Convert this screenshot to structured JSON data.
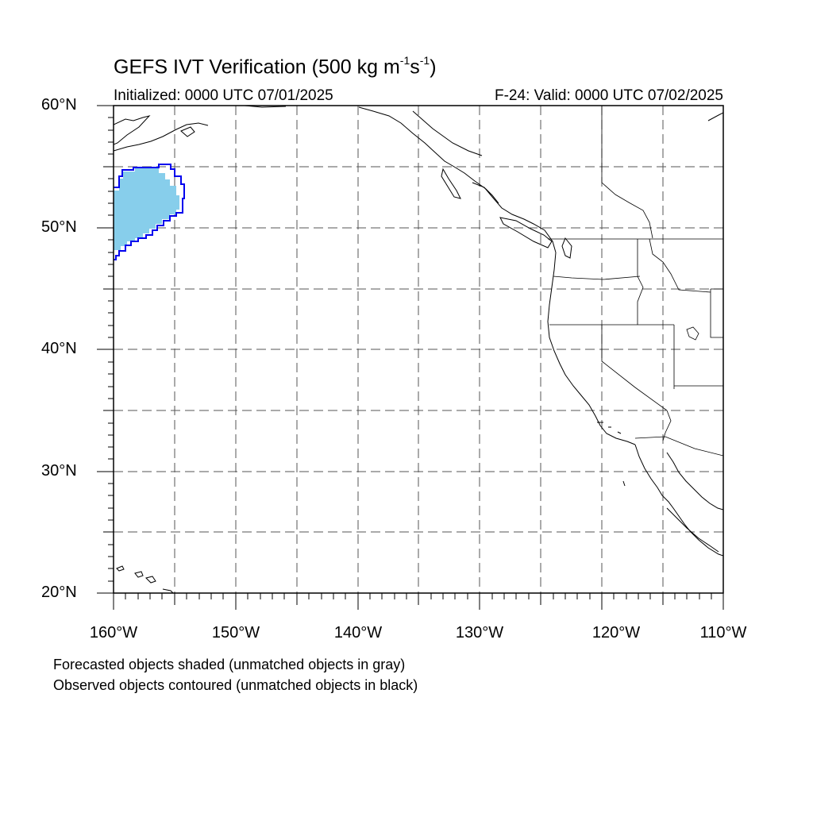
{
  "title": {
    "main": "GEFS IVT Verification (500 kg m",
    "exp1": "-1",
    "mid": "s",
    "exp2": "-1",
    "end": ")"
  },
  "subtitle": {
    "left": "Initialized: 0000 UTC 07/01/2025",
    "right": "F-24: Valid: 0000 UTC 07/02/2025"
  },
  "map": {
    "lat_labels": [
      "60°N",
      "50°N",
      "40°N",
      "30°N",
      "20°N"
    ],
    "lon_labels": [
      "160°W",
      "150°W",
      "140°W",
      "130°W",
      "120°W",
      "110°W"
    ],
    "lat_range": [
      20,
      60
    ],
    "lon_range": [
      -160,
      -110
    ],
    "forecast_fill_color": "#87CEEB",
    "observed_contour_color": "#0000EE",
    "grid": "dashed every 5 degrees"
  },
  "notes": {
    "line1": "Forecasted objects shaded (unmatched objects in gray)",
    "line2": "Observed objects contoured (unmatched objects in black)"
  }
}
